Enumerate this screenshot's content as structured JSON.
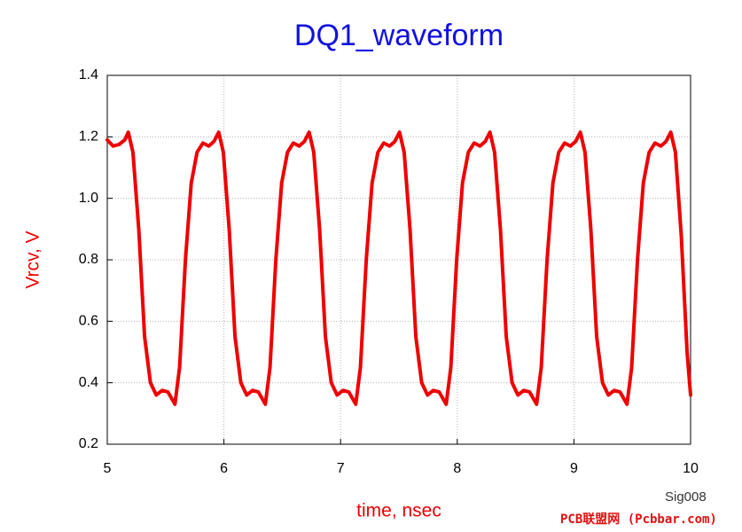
{
  "chart_data": {
    "type": "line",
    "title": "DQ1_waveform",
    "x_label": "time, nsec",
    "y_label": "Vrcv, V",
    "watermark": [
      "Sig008",
      "PCB联盟网 (Pcbbar.com)"
    ],
    "xlim": [
      5,
      10
    ],
    "ylim": [
      0.2,
      1.4
    ],
    "xticks": [
      5,
      6,
      7,
      8,
      9,
      10
    ],
    "yticks": [
      0.2,
      0.4,
      0.6,
      0.8,
      {
        "value": 1.0,
        "label": "1.0"
      },
      1.2,
      1.4
    ],
    "grid": true,
    "x": [
      5.0,
      5.05,
      5.1,
      5.15,
      5.18,
      5.22,
      5.27,
      5.32,
      5.37,
      5.42,
      5.47,
      5.52,
      5.58,
      5.62,
      5.67,
      5.72,
      5.77,
      5.82,
      5.87,
      5.915,
      5.955,
      5.995,
      6.045,
      6.095,
      6.145,
      6.195,
      6.245,
      6.295,
      6.355,
      6.395,
      6.445,
      6.495,
      6.545,
      6.595,
      6.645,
      6.69,
      6.73,
      6.77,
      6.82,
      6.87,
      6.92,
      6.97,
      7.02,
      7.07,
      7.13,
      7.17,
      7.22,
      7.27,
      7.32,
      7.37,
      7.42,
      7.465,
      7.505,
      7.545,
      7.595,
      7.645,
      7.695,
      7.745,
      7.795,
      7.845,
      7.905,
      7.945,
      7.995,
      8.045,
      8.095,
      8.145,
      8.195,
      8.24,
      8.28,
      8.32,
      8.37,
      8.42,
      8.47,
      8.52,
      8.57,
      8.62,
      8.68,
      8.72,
      8.77,
      8.82,
      8.87,
      8.92,
      8.97,
      9.015,
      9.055,
      9.095,
      9.145,
      9.195,
      9.245,
      9.295,
      9.345,
      9.395,
      9.455,
      9.495,
      9.545,
      9.595,
      9.645,
      9.695,
      9.745,
      9.79,
      9.83,
      9.87,
      9.92,
      9.97,
      10.0
    ],
    "series": [
      {
        "name": "Vrcv",
        "color": "#ee0000",
        "values": [
          1.19,
          1.17,
          1.175,
          1.19,
          1.215,
          1.15,
          0.9,
          0.55,
          0.4,
          0.36,
          0.375,
          0.37,
          0.33,
          0.45,
          0.8,
          1.05,
          1.15,
          1.18,
          1.17,
          1.185,
          1.215,
          1.15,
          0.9,
          0.55,
          0.4,
          0.36,
          0.375,
          0.37,
          0.33,
          0.45,
          0.8,
          1.05,
          1.15,
          1.18,
          1.17,
          1.185,
          1.215,
          1.15,
          0.9,
          0.55,
          0.4,
          0.36,
          0.375,
          0.37,
          0.33,
          0.45,
          0.8,
          1.05,
          1.15,
          1.18,
          1.17,
          1.185,
          1.215,
          1.15,
          0.9,
          0.55,
          0.4,
          0.36,
          0.375,
          0.37,
          0.33,
          0.45,
          0.8,
          1.05,
          1.15,
          1.18,
          1.17,
          1.185,
          1.215,
          1.15,
          0.9,
          0.55,
          0.4,
          0.36,
          0.375,
          0.37,
          0.33,
          0.45,
          0.8,
          1.05,
          1.15,
          1.18,
          1.17,
          1.185,
          1.215,
          1.15,
          0.9,
          0.55,
          0.4,
          0.36,
          0.375,
          0.37,
          0.33,
          0.45,
          0.8,
          1.05,
          1.15,
          1.18,
          1.17,
          1.185,
          1.215,
          1.15,
          0.88,
          0.5,
          0.36
        ]
      }
    ]
  }
}
